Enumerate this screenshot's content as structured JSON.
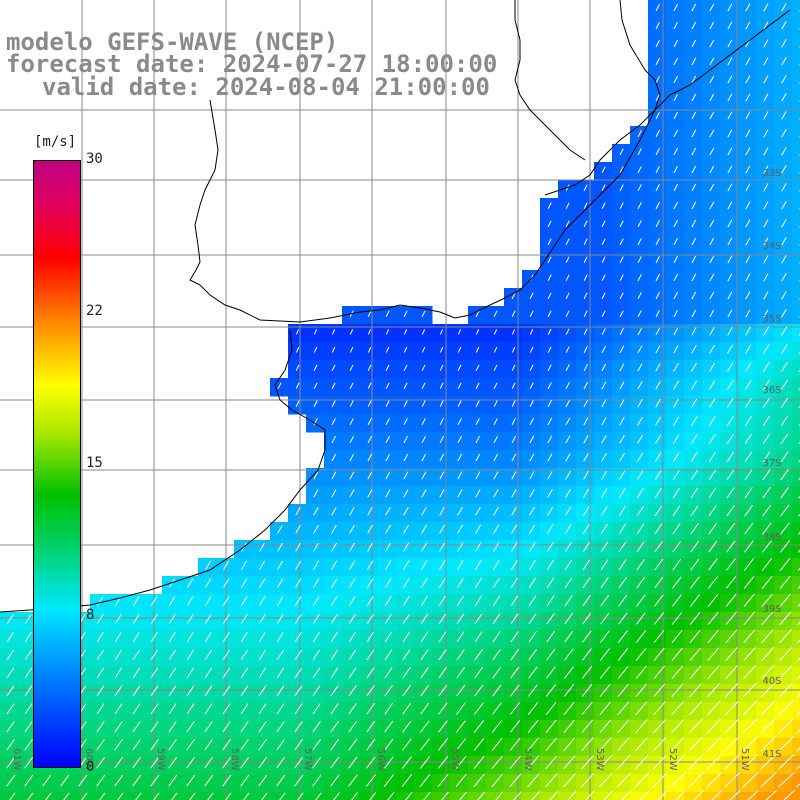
{
  "title": {
    "line1": "modelo GEFS-WAVE (NCEP)",
    "line2": "forecast date: 2024-07-27 18:00:00",
    "line3": "valid date: 2024-08-04 21:00:00"
  },
  "colorbar": {
    "unit": "[m/s]",
    "ticks": [
      "30",
      "22",
      "15",
      "8",
      "0"
    ],
    "tick_values": [
      30,
      22,
      15,
      8,
      0
    ],
    "range": [
      0,
      30
    ]
  },
  "map": {
    "lat_labels": [
      "33S",
      "34S",
      "35S",
      "36S",
      "37S",
      "38S",
      "39S",
      "40S",
      "41S"
    ],
    "lon_labels": [
      "61W",
      "60W",
      "59W",
      "58W",
      "57W",
      "56W",
      "55W",
      "54W",
      "53W",
      "52W",
      "51W"
    ],
    "land_color": "#ffffff",
    "grid_color": "#888888",
    "arrow_color": "#ffffff"
  }
}
